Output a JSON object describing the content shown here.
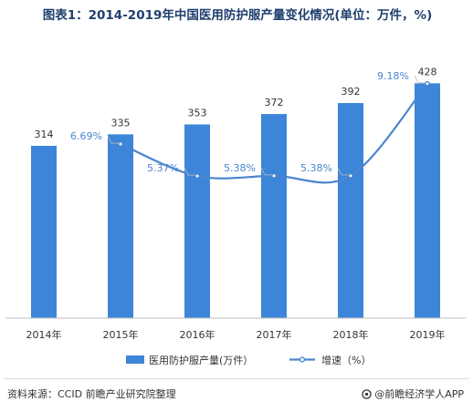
{
  "title": "图表1：2014-2019年中国医用防护服产量变化情况(单位：万件，%)",
  "source": "资料来源：CCID 前瞻产业研究院整理",
  "brand": "@前瞻经济学人APP",
  "colors": {
    "bar": "#3d85d8",
    "line": "#4a86cf",
    "label_line": "#4a86cf",
    "title": "#1f3f6e",
    "axis": "#bfbfbf"
  },
  "chart_data": {
    "type": "bar",
    "categories": [
      "2014年",
      "2015年",
      "2016年",
      "2017年",
      "2018年",
      "2019年"
    ],
    "series": [
      {
        "name": "医用防护服产量(万件）",
        "type": "bar",
        "values": [
          314,
          335,
          353,
          372,
          392,
          428
        ],
        "value_labels": [
          "314",
          "335",
          "353",
          "372",
          "392",
          "428"
        ]
      },
      {
        "name": "增速（%）",
        "type": "line",
        "values": [
          null,
          6.69,
          5.37,
          5.38,
          5.38,
          9.18
        ],
        "value_labels": [
          "",
          "6.69%",
          "5.37%",
          "5.38%",
          "5.38%",
          "9.18%"
        ]
      }
    ],
    "grid": false,
    "legend_position": "bottom"
  }
}
